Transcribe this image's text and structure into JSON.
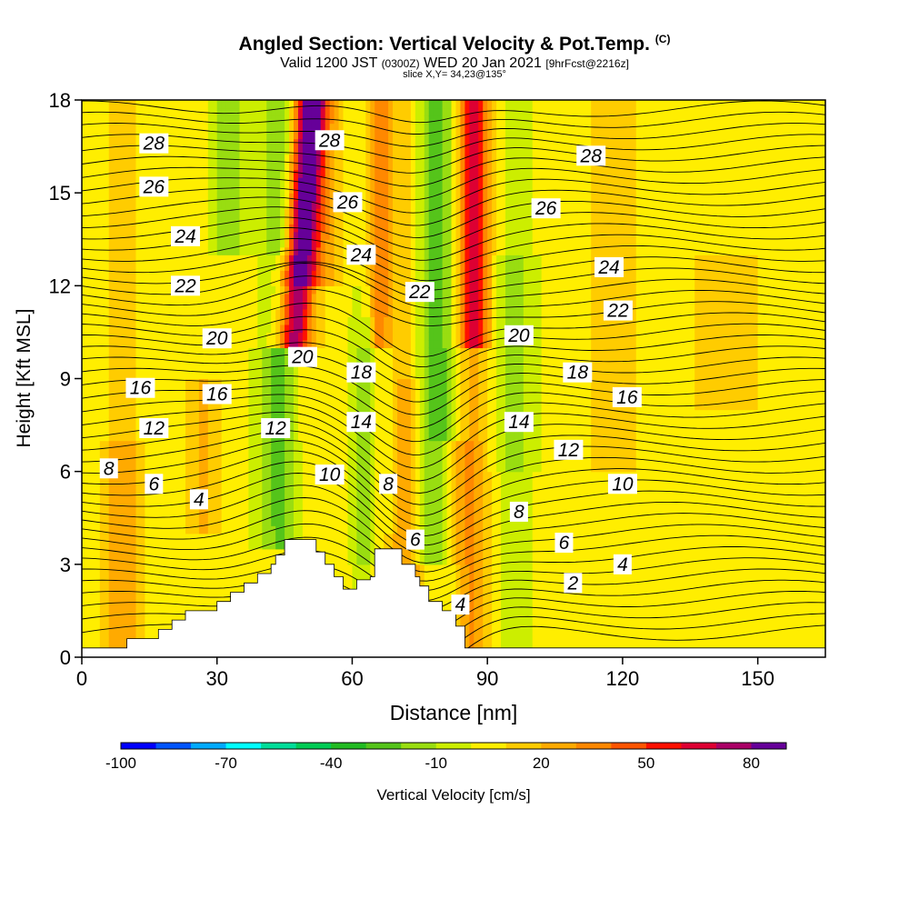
{
  "title": {
    "main": "Angled Section: Vertical Velocity & Pot.Temp.",
    "units_tag": "(C)",
    "valid_prefix": "Valid 1200 JST",
    "valid_zulu": "(0300Z)",
    "valid_date": "WED 20 Jan 2021",
    "forecast": "[9hrFcst@2216z]",
    "slice": "slice X,Y= 34,23@135°"
  },
  "colorbar": {
    "label": "Vertical Velocity [cm/s]",
    "tick_labels": [
      "-100",
      "-70",
      "-40",
      "-10",
      "20",
      "50",
      "80"
    ],
    "levels": [
      -100,
      -90,
      -80,
      -70,
      -60,
      -50,
      -40,
      -30,
      -20,
      -10,
      0,
      10,
      20,
      30,
      40,
      50,
      60,
      70,
      80
    ],
    "colors": [
      "#0000ff",
      "#0055ff",
      "#00aaff",
      "#00ffff",
      "#00dd99",
      "#00cc55",
      "#22bb22",
      "#55c41a",
      "#99dd11",
      "#ccee00",
      "#ffee00",
      "#ffcc00",
      "#ffaa00",
      "#ff8800",
      "#ff5500",
      "#ff1100",
      "#dd0033",
      "#aa0066",
      "#660099"
    ]
  },
  "chart_data": {
    "type": "contour",
    "title": "Angled Section: Vertical Velocity & Pot.Temp.",
    "xlabel": "Distance [nm]",
    "ylabel": "Height [Kft MSL]",
    "xlim": [
      0,
      165
    ],
    "ylim": [
      0,
      18
    ],
    "xticks": [
      0,
      30,
      60,
      90,
      120,
      150
    ],
    "yticks": [
      0,
      3,
      6,
      9,
      12,
      15,
      18
    ],
    "fill_variable": "Vertical Velocity [cm/s]",
    "line_variable": "Potential Temperature (C)",
    "line_levels": [
      2,
      4,
      6,
      8,
      10,
      12,
      14,
      16,
      18,
      20,
      22,
      24,
      26,
      28
    ],
    "terrain_heights_kft": [
      [
        0,
        0.3
      ],
      [
        10,
        0.3
      ],
      [
        10,
        0.6
      ],
      [
        17,
        0.6
      ],
      [
        17,
        0.9
      ],
      [
        20,
        0.9
      ],
      [
        20,
        1.2
      ],
      [
        23,
        1.2
      ],
      [
        23,
        1.5
      ],
      [
        30,
        1.5
      ],
      [
        30,
        1.8
      ],
      [
        33,
        1.8
      ],
      [
        33,
        2.1
      ],
      [
        36,
        2.1
      ],
      [
        36,
        2.4
      ],
      [
        39,
        2.4
      ],
      [
        39,
        2.7
      ],
      [
        42,
        2.7
      ],
      [
        42,
        3.0
      ],
      [
        43,
        3.0
      ],
      [
        43,
        3.3
      ],
      [
        45,
        3.3
      ],
      [
        45,
        3.8
      ],
      [
        52,
        3.8
      ],
      [
        52,
        3.4
      ],
      [
        54,
        3.4
      ],
      [
        54,
        3.0
      ],
      [
        56,
        3.0
      ],
      [
        56,
        2.6
      ],
      [
        58,
        2.6
      ],
      [
        58,
        2.2
      ],
      [
        61,
        2.2
      ],
      [
        61,
        2.5
      ],
      [
        64,
        2.5
      ],
      [
        64,
        2.6
      ],
      [
        65,
        2.6
      ],
      [
        65,
        3.5
      ],
      [
        71,
        3.5
      ],
      [
        71,
        3.0
      ],
      [
        74,
        3.0
      ],
      [
        74,
        2.6
      ],
      [
        75,
        2.6
      ],
      [
        75,
        2.3
      ],
      [
        77,
        2.3
      ],
      [
        77,
        1.8
      ],
      [
        80,
        1.8
      ],
      [
        80,
        1.5
      ],
      [
        83,
        1.5
      ],
      [
        83,
        1.0
      ],
      [
        85,
        1.0
      ],
      [
        85,
        0.3
      ],
      [
        165,
        0.3
      ]
    ],
    "contour_labels": [
      {
        "text": "28",
        "x": 16,
        "y": 16.6
      },
      {
        "text": "26",
        "x": 16,
        "y": 15.2
      },
      {
        "text": "24",
        "x": 23,
        "y": 13.6
      },
      {
        "text": "22",
        "x": 23,
        "y": 12.0
      },
      {
        "text": "20",
        "x": 30,
        "y": 10.3
      },
      {
        "text": "16",
        "x": 13,
        "y": 8.7
      },
      {
        "text": "16",
        "x": 30,
        "y": 8.5
      },
      {
        "text": "12",
        "x": 16,
        "y": 7.4
      },
      {
        "text": "8",
        "x": 6,
        "y": 6.1
      },
      {
        "text": "6",
        "x": 16,
        "y": 5.6
      },
      {
        "text": "4",
        "x": 26,
        "y": 5.1
      },
      {
        "text": "28",
        "x": 55,
        "y": 16.7
      },
      {
        "text": "26",
        "x": 59,
        "y": 14.7
      },
      {
        "text": "24",
        "x": 62,
        "y": 13.0
      },
      {
        "text": "22",
        "x": 75,
        "y": 11.8
      },
      {
        "text": "20",
        "x": 49,
        "y": 9.7
      },
      {
        "text": "18",
        "x": 62,
        "y": 9.2
      },
      {
        "text": "14",
        "x": 62,
        "y": 7.6
      },
      {
        "text": "12",
        "x": 43,
        "y": 7.4
      },
      {
        "text": "10",
        "x": 55,
        "y": 5.9
      },
      {
        "text": "8",
        "x": 68,
        "y": 5.6
      },
      {
        "text": "6",
        "x": 74,
        "y": 3.8
      },
      {
        "text": "4",
        "x": 84,
        "y": 1.7
      },
      {
        "text": "28",
        "x": 113,
        "y": 16.2
      },
      {
        "text": "26",
        "x": 103,
        "y": 14.5
      },
      {
        "text": "24",
        "x": 117,
        "y": 12.6
      },
      {
        "text": "22",
        "x": 119,
        "y": 11.2
      },
      {
        "text": "20",
        "x": 97,
        "y": 10.4
      },
      {
        "text": "18",
        "x": 110,
        "y": 9.2
      },
      {
        "text": "16",
        "x": 121,
        "y": 8.4
      },
      {
        "text": "14",
        "x": 97,
        "y": 7.6
      },
      {
        "text": "12",
        "x": 108,
        "y": 6.7
      },
      {
        "text": "10",
        "x": 120,
        "y": 5.6
      },
      {
        "text": "8",
        "x": 97,
        "y": 4.7
      },
      {
        "text": "6",
        "x": 107,
        "y": 3.7
      },
      {
        "text": "4",
        "x": 120,
        "y": 3.0
      },
      {
        "text": "2",
        "x": 109,
        "y": 2.4
      }
    ]
  }
}
